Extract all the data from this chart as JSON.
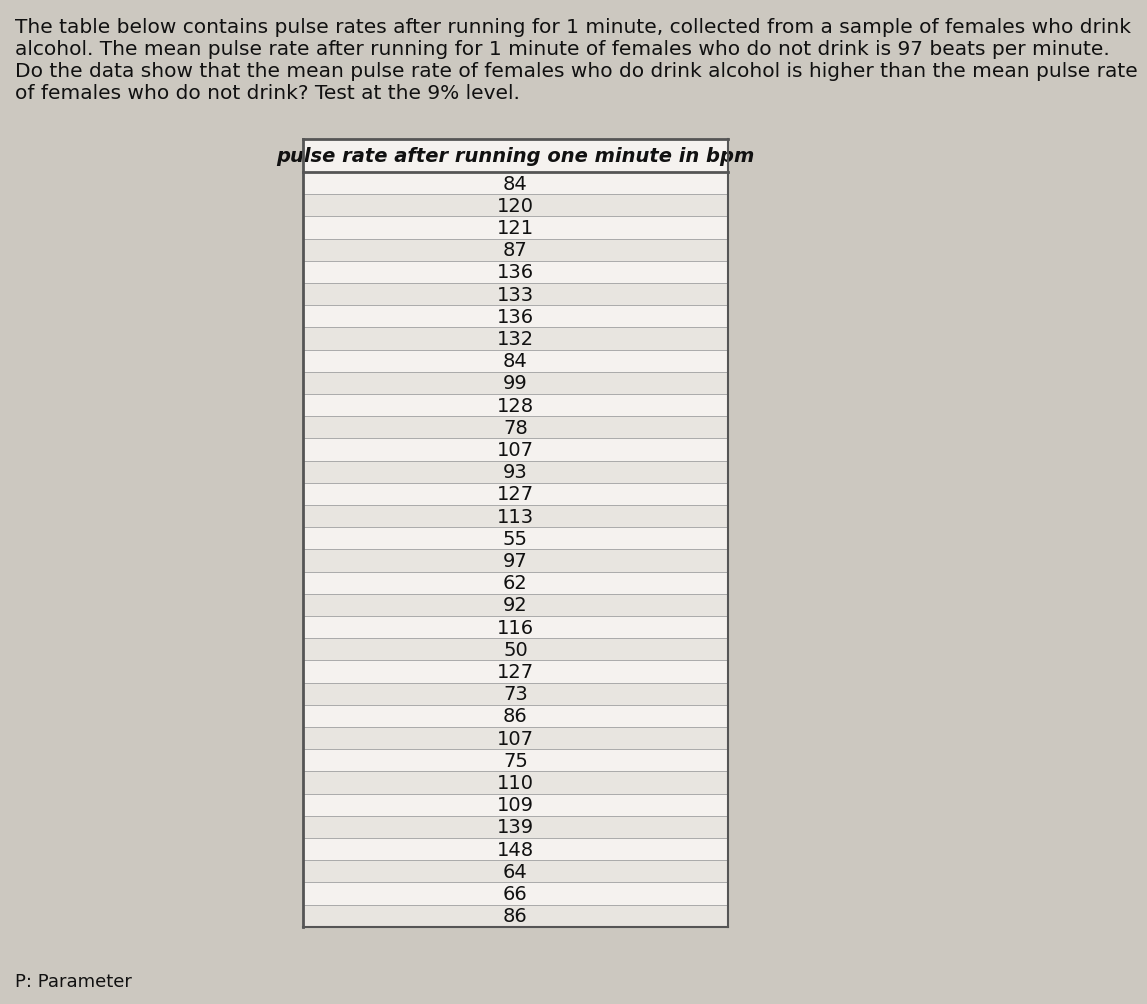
{
  "paragraph_text_lines": [
    "The table below contains pulse rates after running for 1 minute, collected from a sample of females who drink",
    "alcohol. The mean pulse rate after running for 1 minute of females who do not drink is 97 beats per minute.",
    "Do the data show that the mean pulse rate of females who do drink alcohol is higher than the mean pulse rate",
    "of females who do not drink? Test at the 9% level."
  ],
  "column_header": "pulse rate after running one minute in bpm",
  "values": [
    84,
    120,
    121,
    87,
    136,
    133,
    136,
    132,
    84,
    99,
    128,
    78,
    107,
    93,
    127,
    113,
    55,
    97,
    62,
    92,
    116,
    50,
    127,
    73,
    86,
    107,
    75,
    110,
    109,
    139,
    148,
    64,
    66,
    86
  ],
  "footer_text": "P: Parameter",
  "bg_color": "#ccc8c0",
  "table_bg_color": "#f5f2ef",
  "header_bg_color": "#f5f2ef",
  "row_line_color": "#aaaaaa",
  "border_color": "#555555",
  "text_color": "#111111",
  "font_size_paragraph": 14.5,
  "font_size_header": 14,
  "font_size_data": 14,
  "font_size_footer": 13
}
